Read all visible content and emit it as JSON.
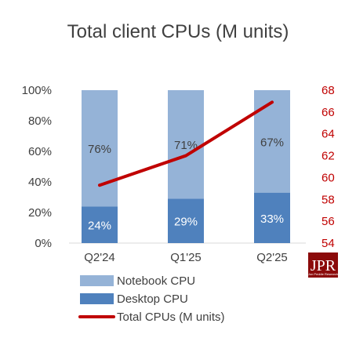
{
  "chart_data": {
    "type": "bar",
    "stacked": true,
    "title": "Total client CPUs (M units)",
    "categories": [
      "Q2'24",
      "Q1'25",
      "Q2'25"
    ],
    "series": [
      {
        "name": "Desktop CPU",
        "values": [
          24,
          29,
          33
        ],
        "labels": [
          "24%",
          "29%",
          "33%"
        ],
        "color": "#4f81bd",
        "axis": "left"
      },
      {
        "name": "Notebook CPU",
        "values": [
          76,
          71,
          67
        ],
        "labels": [
          "76%",
          "71%",
          "67%"
        ],
        "color": "#95b3d7",
        "axis": "left"
      },
      {
        "name": "Total CPUs (M units)",
        "type": "line",
        "values": [
          59.3,
          62.0,
          66.9
        ],
        "color": "#c00000",
        "axis": "right"
      }
    ],
    "y_left": {
      "ylim": [
        0,
        100
      ],
      "ticks": [
        "0%",
        "20%",
        "40%",
        "60%",
        "80%",
        "100%"
      ]
    },
    "y_right": {
      "ylim": [
        54,
        68
      ],
      "ticks": [
        "54",
        "56",
        "58",
        "60",
        "62",
        "64",
        "66",
        "68"
      ]
    },
    "legend": {
      "placement": "bottom",
      "items": [
        "Notebook CPU",
        "Desktop CPU",
        "Total CPUs (M units)"
      ]
    },
    "grid": false
  },
  "logo": {
    "text": "JPR",
    "subtext": "Jon Peddie Research"
  }
}
